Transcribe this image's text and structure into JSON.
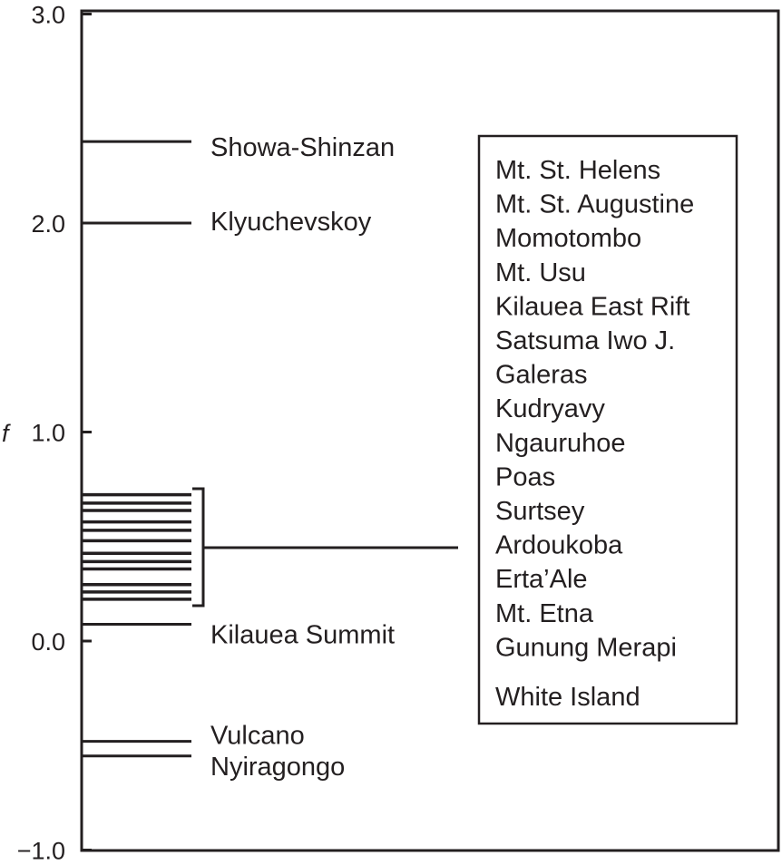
{
  "chart_data": {
    "type": "line",
    "ylabel": "f",
    "ylim": [
      -1.0,
      3.0
    ],
    "yticks": [
      "-1.0",
      "0.0",
      "1.0",
      "2.0",
      "3.0"
    ],
    "ytick_values": [
      -1,
      0,
      1,
      2,
      3
    ],
    "labeled_levels": [
      {
        "name": "Showa-Shinzan",
        "value": 2.39
      },
      {
        "name": "Klyuchevskoy",
        "value": 2.0
      },
      {
        "name": "Kilauea Summit",
        "value": 0.08
      },
      {
        "name": "Vulcano",
        "value": -0.48
      },
      {
        "name": "Nyiragongo",
        "value": -0.55
      }
    ],
    "grouped_levels": [
      0.7,
      0.66,
      0.625,
      0.57,
      0.53,
      0.48,
      0.42,
      0.38,
      0.345,
      0.27,
      0.235,
      0.2
    ],
    "group_names": [
      "Mt. St. Helens",
      "Mt. St. Augustine",
      "Momotombo",
      "Mt. Usu",
      "Kilauea East Rift",
      "Satsuma Iwo J.",
      "Galeras",
      "Kudryavy",
      "Ngauruhoe",
      "Poas",
      "Surtsey",
      "Ardoukoba",
      "Erta’Ale",
      "Mt. Etna",
      "Gunung Merapi",
      "White Island"
    ],
    "colors": {
      "ink": "#231f20"
    }
  }
}
